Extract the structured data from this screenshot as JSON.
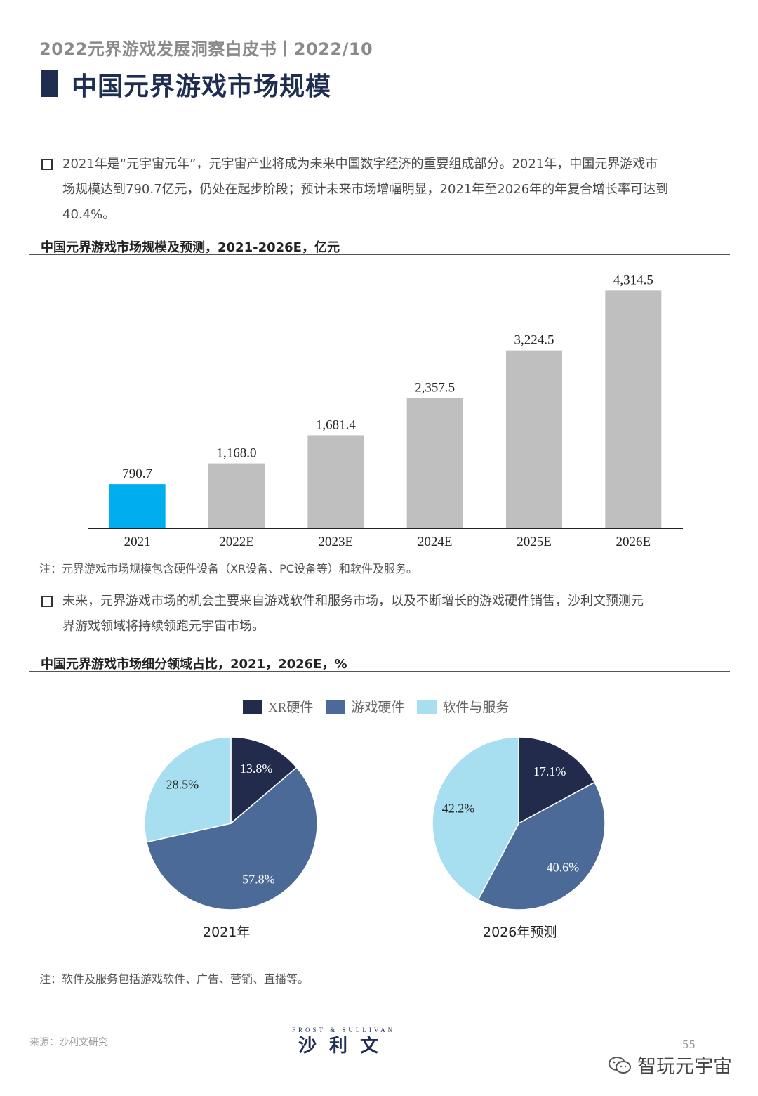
{
  "header": {
    "report": "2022元界游戏发展洞察白皮书丨2022/10",
    "title": "中国元界游戏市场规模"
  },
  "paragraph1": {
    "lines": [
      "2021年是“元宇宙元年”，元宇宙产业将成为未来中国数字经济的重要组成部分。2021年，中国元界游戏市",
      "场规模达到790.7亿元，仍处在起步阶段；预计未来市场增幅明显，2021年至2026年的年复合增长率可达到",
      "40.4%。"
    ]
  },
  "bar_section": {
    "title": "中国元界游戏市场规模及预测，2021-2026E，亿元",
    "note": "注：元界游戏市场规模包含硬件设备（XR设备、PC设备等）和软件及服务。"
  },
  "paragraph2": {
    "lines": [
      "未来，元界游戏市场的机会主要来自游戏软件和服务市场，以及不断增长的游戏硬件销售，沙利文预测元",
      "界游戏领域将持续领跑元宇宙市场。"
    ]
  },
  "pie_section": {
    "title": "中国元界游戏市场细分领域占比，2021，2026E，%",
    "note": "注：软件及服务包括游戏软件、广告、营销、直播等。"
  },
  "chart_data": [
    {
      "type": "bar",
      "categories": [
        "2021",
        "2022E",
        "2023E",
        "2024E",
        "2025E",
        "2026E"
      ],
      "values": [
        790.7,
        1168.0,
        1681.4,
        2357.5,
        3224.5,
        4314.5
      ],
      "value_labels": [
        "790.7",
        "1,168.0",
        "1,681.4",
        "2,357.5",
        "3,224.5",
        "4,314.5"
      ],
      "colors": [
        "#00aeef",
        "#bfbfbf",
        "#bfbfbf",
        "#bfbfbf",
        "#bfbfbf",
        "#bfbfbf"
      ],
      "ylim": [
        0,
        4600
      ],
      "grid": false
    },
    {
      "type": "pie",
      "legend": [
        {
          "name": "XR硬件",
          "color": "#222b4c"
        },
        {
          "name": "游戏硬件",
          "color": "#4b6a97"
        },
        {
          "name": "软件与服务",
          "color": "#a8dff0"
        }
      ],
      "legend_position": "top-center",
      "pies": [
        {
          "caption": "2021年",
          "values": [
            13.8,
            57.8,
            28.5
          ],
          "labels": [
            "13.8%",
            "57.8%",
            "28.5%"
          ]
        },
        {
          "caption": "2026年预测",
          "values": [
            17.1,
            40.6,
            42.2
          ],
          "labels": [
            "17.1%",
            "40.6%",
            "42.2%"
          ]
        }
      ]
    }
  ],
  "footer": {
    "source": "来源：沙利文研究",
    "logo_small": "FROST & SULLIVAN",
    "logo_big": "沙利文",
    "page_number": "55",
    "wechat": "智玩元宇宙"
  }
}
